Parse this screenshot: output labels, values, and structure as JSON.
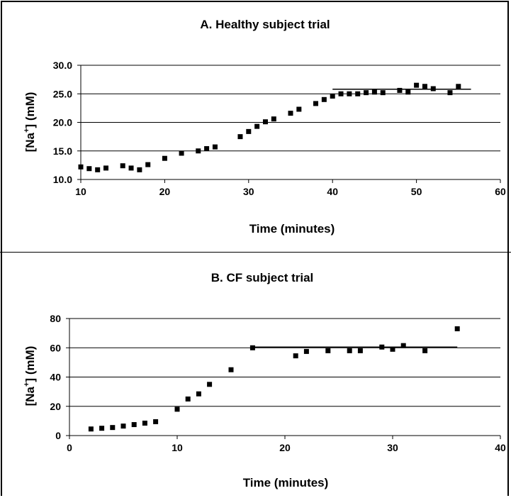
{
  "chart_data": [
    {
      "type": "scatter",
      "title": "A.  Healthy subject trial",
      "xlabel": "Time (minutes)",
      "ylabel_main": "[Na",
      "ylabel_sup": "+",
      "ylabel_tail": "] (mM)",
      "xlim": [
        10,
        60
      ],
      "ylim": [
        10,
        30
      ],
      "xticks": [
        10,
        20,
        30,
        40,
        50,
        60
      ],
      "yticks": [
        10,
        15,
        20,
        25,
        30
      ],
      "xtick_labels": [
        "10",
        "20",
        "30",
        "40",
        "50",
        "60"
      ],
      "ytick_labels": [
        "10.0",
        "15.0",
        "20.0",
        "25.0",
        "30.0"
      ],
      "grid": "horizontal",
      "series": [
        {
          "x": [
            10,
            11,
            12,
            13,
            15,
            16,
            17,
            18,
            20,
            22,
            24,
            25,
            26,
            29,
            30,
            31,
            32,
            33,
            35,
            36,
            38,
            39,
            40,
            41,
            42,
            43,
            44,
            45,
            46,
            48,
            49,
            50,
            51,
            52,
            54,
            55
          ],
          "y": [
            12.2,
            11.9,
            11.7,
            12.0,
            12.4,
            12.0,
            11.7,
            12.6,
            13.7,
            14.6,
            15.0,
            15.4,
            15.7,
            17.5,
            18.4,
            19.3,
            20.1,
            20.6,
            21.6,
            22.3,
            23.3,
            24.0,
            24.6,
            25.0,
            25.0,
            25.0,
            25.2,
            25.3,
            25.2,
            25.6,
            25.3,
            26.5,
            26.3,
            25.9,
            25.2,
            26.3
          ]
        }
      ],
      "reference_line": {
        "x": [
          40,
          56.5
        ],
        "y": [
          25.8,
          25.8
        ]
      }
    },
    {
      "type": "scatter",
      "title": "B.  CF subject trial",
      "xlabel": "Time (minutes)",
      "ylabel_main": "[Na",
      "ylabel_sup": "+",
      "ylabel_tail": "] (mM)",
      "xlim": [
        0,
        40
      ],
      "ylim": [
        0,
        80
      ],
      "xticks": [
        0,
        10,
        20,
        30,
        40
      ],
      "yticks": [
        0,
        20,
        40,
        60,
        80
      ],
      "xtick_labels": [
        "0",
        "10",
        "20",
        "30",
        "40"
      ],
      "ytick_labels": [
        "0",
        "20",
        "40",
        "60",
        "80"
      ],
      "grid": "horizontal",
      "series": [
        {
          "x": [
            2,
            3,
            4,
            5,
            6,
            7,
            8,
            10,
            11,
            12,
            13,
            15,
            17,
            21,
            22,
            24,
            26,
            27,
            29,
            30,
            31,
            33,
            36
          ],
          "y": [
            4.5,
            5,
            5.5,
            6.5,
            7.5,
            8.5,
            9.5,
            18,
            25,
            28.5,
            35,
            45,
            60,
            54.5,
            57.5,
            58,
            58,
            58,
            60.5,
            59,
            61.5,
            58,
            73
          ]
        }
      ],
      "reference_line": {
        "x": [
          17,
          36
        ],
        "y": [
          60.5,
          60.5
        ]
      }
    }
  ]
}
